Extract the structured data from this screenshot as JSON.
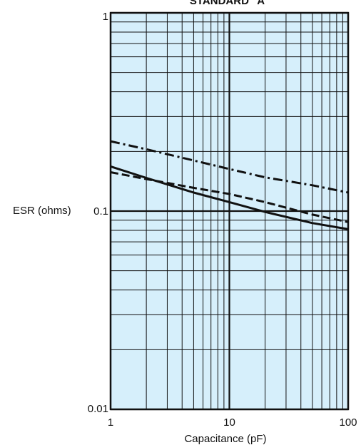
{
  "chart_data": {
    "type": "line",
    "title": "STANDARD \"A\"",
    "xlabel": "Capacitance (pF)",
    "ylabel": "ESR (ohms)",
    "x_scale": "log",
    "y_scale": "log",
    "xlim": [
      1,
      100
    ],
    "ylim": [
      0.01,
      1
    ],
    "x_ticks": [
      1,
      10,
      100
    ],
    "x_tick_labels": [
      "1",
      "10",
      "100"
    ],
    "y_ticks": [
      0.01,
      0.1,
      1
    ],
    "y_tick_labels": [
      "0.01",
      "0.1",
      "1"
    ],
    "grid": true,
    "plot_background": "#d6effb",
    "series": [
      {
        "line_style": "dash-dot",
        "x": [
          1,
          2,
          5,
          10,
          20,
          50,
          100
        ],
        "values": [
          0.225,
          0.205,
          0.18,
          0.163,
          0.148,
          0.135,
          0.124
        ]
      },
      {
        "line_style": "dashed",
        "x": [
          1,
          2,
          5,
          10,
          20,
          50,
          100
        ],
        "values": [
          0.157,
          0.145,
          0.131,
          0.122,
          0.111,
          0.096,
          0.088
        ]
      },
      {
        "line_style": "solid",
        "x": [
          1,
          2,
          5,
          10,
          20,
          50,
          100
        ],
        "values": [
          0.168,
          0.147,
          0.124,
          0.111,
          0.099,
          0.087,
          0.081
        ]
      }
    ]
  }
}
